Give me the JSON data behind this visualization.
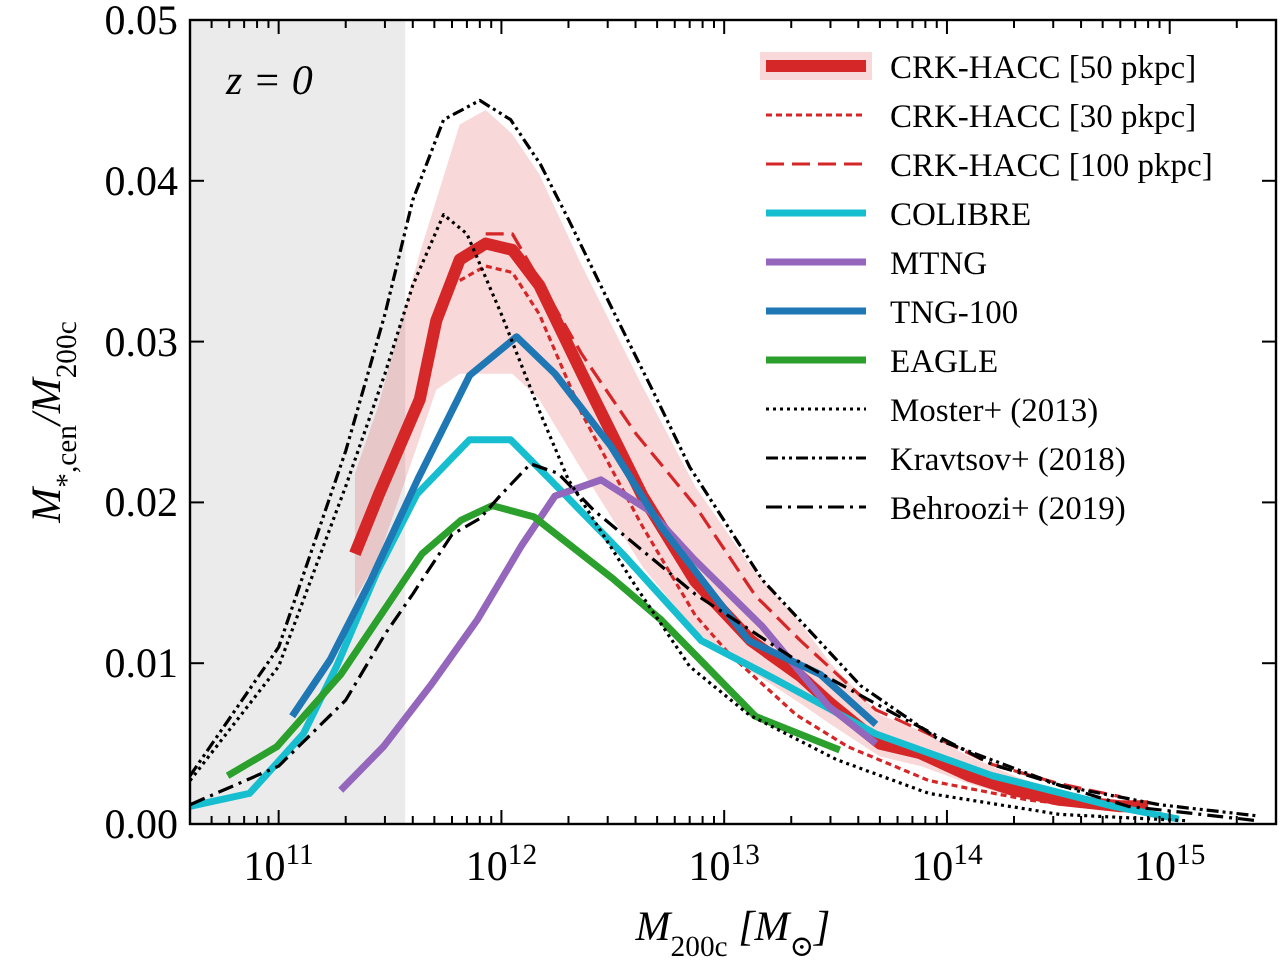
{
  "chart_data": {
    "type": "line",
    "xlabel": "M$_{200c}$ [M$_{⊙}$]",
    "ylabel": "M$_{*,cen}$/M$_{200c}$",
    "annotations": [
      "z = 0"
    ],
    "log": "x",
    "xlim": [
      40000000000.0,
      3000000000000000.0
    ],
    "ylim": [
      0,
      0.05
    ],
    "xticks": [
      {
        "value": 40000000000.0,
        "label": null
      },
      {
        "value": 50000000000.0,
        "label": null
      },
      {
        "value": 60000000000.0,
        "label": null
      },
      {
        "value": 70000000000.0,
        "label": null
      },
      {
        "value": 80000000000.0,
        "label": null
      },
      {
        "value": 90000000000.0,
        "label": null
      },
      {
        "value": 100000000000.0,
        "label": "10$^{11}$"
      },
      {
        "value": 200000000000.0,
        "label": null
      },
      {
        "value": 300000000000.0,
        "label": null
      },
      {
        "value": 400000000000.0,
        "label": null
      },
      {
        "value": 500000000000.0,
        "label": null
      },
      {
        "value": 600000000000.0,
        "label": null
      },
      {
        "value": 700000000000.0,
        "label": null
      },
      {
        "value": 800000000000.0,
        "label": null
      },
      {
        "value": 900000000000.0,
        "label": null
      },
      {
        "value": 1000000000000.0,
        "label": "10$^{12}$"
      },
      {
        "value": 2000000000000.0,
        "label": null
      },
      {
        "value": 3000000000000.0,
        "label": null
      },
      {
        "value": 4000000000000.0,
        "label": null
      },
      {
        "value": 5000000000000.0,
        "label": null
      },
      {
        "value": 6000000000000.0,
        "label": null
      },
      {
        "value": 7000000000000.0,
        "label": null
      },
      {
        "value": 8000000000000.0,
        "label": null
      },
      {
        "value": 9000000000000.0,
        "label": null
      },
      {
        "value": 10000000000000.0,
        "label": "10$^{13}$"
      },
      {
        "value": 20000000000000.0,
        "label": null
      },
      {
        "value": 30000000000000.0,
        "label": null
      },
      {
        "value": 40000000000000.0,
        "label": null
      },
      {
        "value": 50000000000000.0,
        "label": null
      },
      {
        "value": 60000000000000.0,
        "label": null
      },
      {
        "value": 70000000000000.0,
        "label": null
      },
      {
        "value": 80000000000000.0,
        "label": null
      },
      {
        "value": 90000000000000.0,
        "label": null
      },
      {
        "value": 100000000000000.0,
        "label": "10$^{14}$"
      },
      {
        "value": 200000000000000.0,
        "label": null
      },
      {
        "value": 300000000000000.0,
        "label": null
      },
      {
        "value": 400000000000000.0,
        "label": null
      },
      {
        "value": 500000000000000.0,
        "label": null
      },
      {
        "value": 600000000000000.0,
        "label": null
      },
      {
        "value": 700000000000000.0,
        "label": null
      },
      {
        "value": 800000000000000.0,
        "label": null
      },
      {
        "value": 900000000000000.0,
        "label": null
      },
      {
        "value": 1000000000000000.0,
        "label": "10$^{15}$"
      },
      {
        "value": 2000000000000000.0,
        "label": null
      }
    ],
    "yticks": [
      {
        "value": 0,
        "label": "0.00"
      },
      {
        "value": 0.01,
        "label": "0.01"
      },
      {
        "value": 0.02,
        "label": "0.02"
      },
      {
        "value": 0.03,
        "label": "0.03"
      },
      {
        "value": 0.04,
        "label": "0.04"
      },
      {
        "value": 0.05,
        "label": "0.05"
      }
    ],
    "bands": [
      {
        "axis": "x",
        "from": 40000000000.0,
        "to": 370000000000.0,
        "color": "#ebebeb"
      }
    ],
    "legend": "top right",
    "grid": false,
    "series": [
      {
        "name": "CRK-HACC [50 pkpc]",
        "color": "#d62728",
        "line_style": "solid",
        "x": [
          220000000000.0,
          280000000000.0,
          430000000000.0,
          510000000000.0,
          650000000000.0,
          850000000000.0,
          1120000000000.0,
          1480000000000.0,
          2300000000000.0,
          4300000000000.0,
          7400000000000.0,
          13200000000000.0,
          22000000000000.0,
          30000000000000.0,
          50000000000000.0,
          76000000000000.0,
          126000000000000.0,
          200000000000000.0,
          320000000000000.0,
          600000000000000.0,
          800000000000000.0
        ],
        "values": [
          0.0168,
          0.0204,
          0.0264,
          0.0313,
          0.0351,
          0.0361,
          0.0357,
          0.0335,
          0.028,
          0.0204,
          0.0151,
          0.0114,
          0.0092,
          0.0075,
          0.005,
          0.0044,
          0.003,
          0.0021,
          0.0015,
          0.0011,
          0.0011
        ],
        "lower": [
          0.014,
          0.0165,
          0.024,
          0.027,
          0.028,
          0.028,
          0.028,
          0.0264,
          0.022,
          0.016,
          0.012,
          0.0095,
          0.0075,
          0.0062,
          0.0042,
          0.0036,
          0.0025,
          0.0017,
          0.0012,
          0.0008,
          0.0008
        ],
        "upper": [
          0.0218,
          0.026,
          0.0355,
          0.0388,
          0.0435,
          0.0444,
          0.0429,
          0.0404,
          0.0347,
          0.0272,
          0.021,
          0.016,
          0.0125,
          0.01,
          0.0068,
          0.0058,
          0.0042,
          0.003,
          0.002,
          0.0014,
          0.0013
        ]
      },
      {
        "name": "CRK-HACC [30 pkpc]",
        "color": "#d62728",
        "line_style": "dashed",
        "x": [
          650000000000.0,
          850000000000.0,
          1120000000000.0,
          1480000000000.0,
          2300000000000.0,
          4300000000000.0,
          7400000000000.0,
          10500000000000.0,
          21000000000000.0,
          36000000000000.0,
          83000000000000.0,
          230000000000000.0,
          560000000000000.0
        ],
        "values": [
          0.0338,
          0.0347,
          0.0343,
          0.0317,
          0.0255,
          0.0185,
          0.013,
          0.0106,
          0.0068,
          0.0048,
          0.0027,
          0.0015,
          0.0009
        ]
      },
      {
        "name": "CRK-HACC [100 pkpc]",
        "color": "#d62728",
        "line_style": "longdashed",
        "x": [
          850000000000.0,
          1120000000000.0,
          1480000000000.0,
          2300000000000.0,
          4000000000000.0,
          7400000000000.0,
          13800000000000.0,
          22000000000000.0,
          48000000000000.0,
          83000000000000.0,
          160000000000000.0,
          320000000000000.0,
          600000000000000.0
        ],
        "values": [
          0.0367,
          0.0367,
          0.0338,
          0.0292,
          0.0243,
          0.0198,
          0.0142,
          0.0114,
          0.0071,
          0.0056,
          0.0037,
          0.0025,
          0.0017
        ]
      },
      {
        "name": "COLIBRE",
        "color": "#17becf",
        "line_style": "solid",
        "x": [
          40000000000.0,
          74000000000.0,
          129000000000.0,
          182000000000.0,
          275000000000.0,
          417000000000.0,
          720000000000.0,
          1100000000000.0,
          1660000000000.0,
          3500000000000.0,
          7900000000000.0,
          17000000000000.0,
          48000000000000.0,
          160000000000000.0,
          560000000000000.0,
          1100000000000000.0
        ],
        "values": [
          0.0011,
          0.0019,
          0.0056,
          0.0098,
          0.0156,
          0.0205,
          0.0239,
          0.0239,
          0.0214,
          0.0168,
          0.0114,
          0.009,
          0.0056,
          0.003,
          0.0011,
          0.0003
        ]
      },
      {
        "name": "MTNG",
        "color": "#9467bd",
        "line_style": "solid",
        "x": [
          190000000000.0,
          295000000000.0,
          480000000000.0,
          780000000000.0,
          1230000000000.0,
          1740000000000.0,
          2800000000000.0,
          4600000000000.0,
          7400000000000.0,
          14800000000000.0,
          29500000000000.0,
          48000000000000.0
        ],
        "values": [
          0.0021,
          0.0048,
          0.0086,
          0.0127,
          0.0173,
          0.0204,
          0.0214,
          0.0195,
          0.0164,
          0.0123,
          0.0073,
          0.005
        ]
      },
      {
        "name": "TNG-100",
        "color": "#1f77b4",
        "line_style": "solid",
        "x": [
          115000000000.0,
          170000000000.0,
          260000000000.0,
          420000000000.0,
          720000000000.0,
          1170000000000.0,
          1740000000000.0,
          3100000000000.0,
          5200000000000.0,
          12900000000000.0,
          27000000000000.0,
          48000000000000.0
        ],
        "values": [
          0.0067,
          0.0102,
          0.0152,
          0.0214,
          0.0279,
          0.0303,
          0.028,
          0.0235,
          0.0185,
          0.0114,
          0.0093,
          0.0062
        ]
      },
      {
        "name": "EAGLE",
        "color": "#2ca02c",
        "line_style": "solid",
        "x": [
          59000000000.0,
          98000000000.0,
          190000000000.0,
          440000000000.0,
          660000000000.0,
          910000000000.0,
          1400000000000.0,
          3200000000000.0,
          5200000000000.0,
          13800000000000.0,
          33000000000000.0
        ],
        "values": [
          0.003,
          0.0048,
          0.0093,
          0.0168,
          0.0189,
          0.0198,
          0.0191,
          0.0152,
          0.0127,
          0.0067,
          0.0046
        ]
      },
      {
        "name": "Moster+ (2013)",
        "color": "#000000",
        "line_style": "dotted",
        "x": [
          40000000000.0,
          100000000000.0,
          200000000000.0,
          300000000000.0,
          400000000000.0,
          550000000000.0,
          700000000000.0,
          1000000000000.0,
          1500000000000.0,
          2000000000000.0,
          4000000000000.0,
          7000000000000.0,
          12900000000000.0,
          32000000000000.0,
          83000000000000.0,
          320000000000000.0,
          1200000000000000.0
        ],
        "values": [
          0.0027,
          0.0098,
          0.021,
          0.028,
          0.0335,
          0.0379,
          0.0367,
          0.0317,
          0.0255,
          0.0214,
          0.0148,
          0.0098,
          0.0068,
          0.004,
          0.0019,
          0.0006,
          0.0002
        ]
      },
      {
        "name": "Kravtsov+ (2018)",
        "color": "#000000",
        "line_style": "dashdotdot",
        "x": [
          40000000000.0,
          100000000000.0,
          200000000000.0,
          300000000000.0,
          400000000000.0,
          550000000000.0,
          800000000000.0,
          1100000000000.0,
          1500000000000.0,
          2000000000000.0,
          3000000000000.0,
          5000000000000.0,
          7000000000000.0,
          14800000000000.0,
          41000000000000.0,
          93000000000000.0,
          320000000000000.0,
          900000000000000.0,
          2500000000000000.0
        ],
        "values": [
          0.003,
          0.011,
          0.0232,
          0.0317,
          0.0388,
          0.0438,
          0.045,
          0.0438,
          0.041,
          0.0376,
          0.0326,
          0.0264,
          0.0222,
          0.0152,
          0.0086,
          0.0052,
          0.0024,
          0.0012,
          0.0005
        ]
      },
      {
        "name": "Behroozi+ (2019)",
        "color": "#000000",
        "line_style": "dashdot",
        "x": [
          40000000000.0,
          100000000000.0,
          200000000000.0,
          300000000000.0,
          400000000000.0,
          600000000000.0,
          800000000000.0,
          1000000000000.0,
          1350000000000.0,
          1800000000000.0,
          2600000000000.0,
          7400000000000.0,
          21000000000000.0,
          59000000000000.0,
          160000000000000.0,
          650000000000000.0,
          2500000000000000.0
        ],
        "values": [
          0.0012,
          0.0036,
          0.0077,
          0.0118,
          0.0143,
          0.018,
          0.019,
          0.0205,
          0.0224,
          0.0218,
          0.0195,
          0.0143,
          0.0102,
          0.0068,
          0.0037,
          0.0011,
          0.0002
        ]
      }
    ]
  }
}
